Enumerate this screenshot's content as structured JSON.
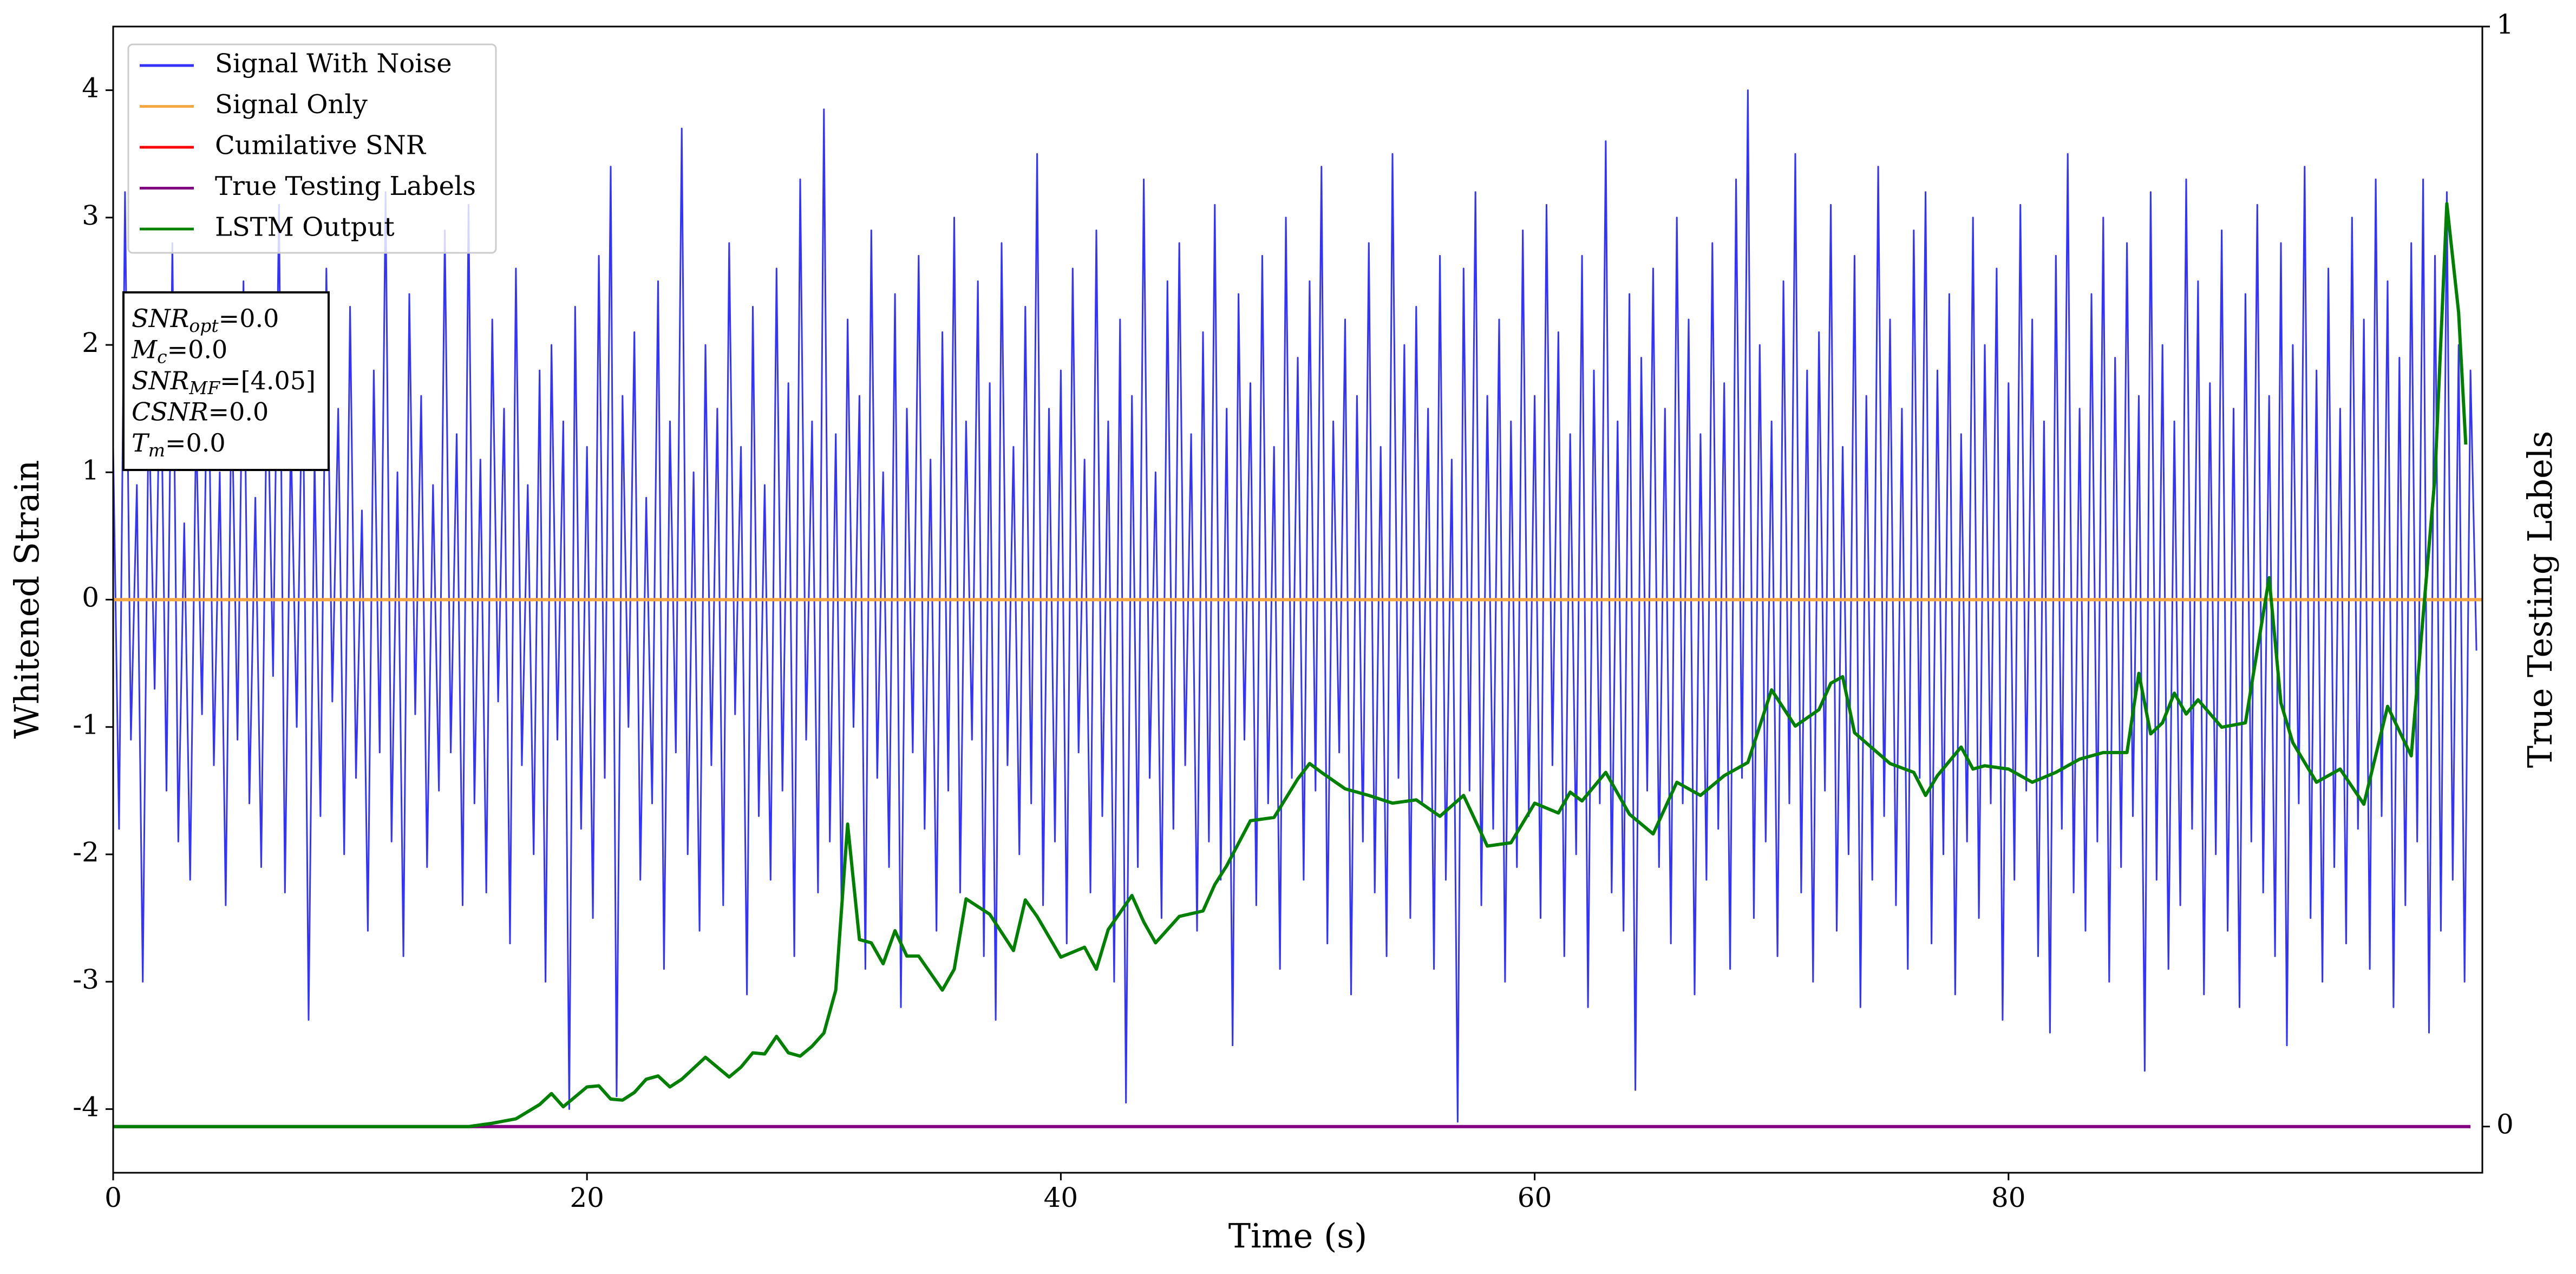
{
  "chart_data": {
    "type": "line",
    "xlabel": "Time (s)",
    "ylabel": "Whitened Strain",
    "y2label": "True Testing Labels",
    "xlim": [
      0,
      100
    ],
    "ylim": [
      -4.5,
      4.5
    ],
    "y2lim": [
      -0.042,
      1
    ],
    "xticks": [
      0,
      20,
      40,
      60,
      80
    ],
    "yticks": [
      -4,
      -3,
      -2,
      -1,
      0,
      1,
      2,
      3,
      4
    ],
    "y2ticks": [
      0,
      1
    ],
    "legend": "upper left",
    "annotations": [
      {
        "text": "SNR",
        "sub": "opt",
        "value": "=0.0"
      },
      {
        "text": "M",
        "sub": "c",
        "value": "=0.0"
      },
      {
        "text": "SNR",
        "sub": "MF",
        "value": "=[4.05]"
      },
      {
        "text": "CSNR",
        "value": "=0.0"
      },
      {
        "text": "T",
        "sub": "m",
        "value": "=0.0"
      }
    ],
    "series": [
      {
        "name": "Signal With Noise",
        "color": "#3333ff",
        "x": [
          0,
          0.25,
          0.5,
          0.75,
          1,
          1.25,
          1.5,
          1.75,
          2,
          2.25,
          2.5,
          2.75,
          3,
          3.25,
          3.5,
          3.75,
          4,
          4.25,
          4.5,
          4.75,
          5,
          5.25,
          5.5,
          5.75,
          6,
          6.25,
          6.5,
          6.75,
          7,
          7.25,
          7.5,
          7.75,
          8,
          8.25,
          8.5,
          8.75,
          9,
          9.25,
          9.5,
          9.75,
          10,
          10.25,
          10.5,
          10.75,
          11,
          11.25,
          11.5,
          11.75,
          12,
          12.25,
          12.5,
          12.75,
          13,
          13.25,
          13.5,
          13.75,
          14,
          14.25,
          14.5,
          14.75,
          15,
          15.25,
          15.5,
          15.75,
          16,
          16.25,
          16.5,
          16.75,
          17,
          17.25,
          17.5,
          17.75,
          18,
          18.25,
          18.5,
          18.75,
          19,
          19.25,
          19.5,
          19.75,
          20,
          20.25,
          20.5,
          20.75,
          21,
          21.25,
          21.5,
          21.75,
          22,
          22.25,
          22.5,
          22.75,
          23,
          23.25,
          23.5,
          23.75,
          24,
          24.25,
          24.5,
          24.75,
          25,
          25.25,
          25.5,
          25.75,
          26,
          26.25,
          26.5,
          26.75,
          27,
          27.25,
          27.5,
          27.75,
          28,
          28.25,
          28.5,
          28.75,
          29,
          29.25,
          29.5,
          29.75,
          30,
          30.25,
          30.5,
          30.75,
          31,
          31.25,
          31.5,
          31.75,
          32,
          32.25,
          32.5,
          32.75,
          33,
          33.25,
          33.5,
          33.75,
          34,
          34.25,
          34.5,
          34.75,
          35,
          35.25,
          35.5,
          35.75,
          36,
          36.25,
          36.5,
          36.75,
          37,
          37.25,
          37.5,
          37.75,
          38,
          38.25,
          38.5,
          38.75,
          39,
          39.25,
          39.5,
          39.75,
          40,
          40.25,
          40.5,
          40.75,
          41,
          41.25,
          41.5,
          41.75,
          42,
          42.25,
          42.5,
          42.75,
          43,
          43.25,
          43.5,
          43.75,
          44,
          44.25,
          44.5,
          44.75,
          45,
          45.25,
          45.5,
          45.75,
          46,
          46.25,
          46.5,
          46.75,
          47,
          47.25,
          47.5,
          47.75,
          48,
          48.25,
          48.5,
          48.75,
          49,
          49.25,
          49.5,
          49.75,
          50,
          50.25,
          50.5,
          50.75,
          51,
          51.25,
          51.5,
          51.75,
          52,
          52.25,
          52.5,
          52.75,
          53,
          53.25,
          53.5,
          53.75,
          54,
          54.25,
          54.5,
          54.75,
          55,
          55.25,
          55.5,
          55.75,
          56,
          56.25,
          56.5,
          56.75,
          57,
          57.25,
          57.5,
          57.75,
          58,
          58.25,
          58.5,
          58.75,
          59,
          59.25,
          59.5,
          59.75,
          60,
          60.25,
          60.5,
          60.75,
          61,
          61.25,
          61.5,
          61.75,
          62,
          62.25,
          62.5,
          62.75,
          63,
          63.25,
          63.5,
          63.75,
          64,
          64.25,
          64.5,
          64.75,
          65,
          65.25,
          65.5,
          65.75,
          66,
          66.25,
          66.5,
          66.75,
          67,
          67.25,
          67.5,
          67.75,
          68,
          68.25,
          68.5,
          68.75,
          69,
          69.25,
          69.5,
          69.75,
          70,
          70.25,
          70.5,
          70.75,
          71,
          71.25,
          71.5,
          71.75,
          72,
          72.25,
          72.5,
          72.75,
          73,
          73.25,
          73.5,
          73.75,
          74,
          74.25,
          74.5,
          74.75,
          75,
          75.25,
          75.5,
          75.75,
          76,
          76.25,
          76.5,
          76.75,
          77,
          77.25,
          77.5,
          77.75,
          78,
          78.25,
          78.5,
          78.75,
          79,
          79.25,
          79.5,
          79.75,
          80,
          80.25,
          80.5,
          80.75,
          81,
          81.25,
          81.5,
          81.75,
          82,
          82.25,
          82.5,
          82.75,
          83,
          83.25,
          83.5,
          83.75,
          84,
          84.25,
          84.5,
          84.75,
          85,
          85.25,
          85.5,
          85.75,
          86,
          86.25,
          86.5,
          86.75,
          87,
          87.25,
          87.5,
          87.75,
          88,
          88.25,
          88.5,
          88.75,
          89,
          89.25,
          89.5,
          89.75,
          90,
          90.25,
          90.5,
          90.75,
          91,
          91.25,
          91.5,
          91.75,
          92,
          92.25,
          92.5,
          92.75,
          93,
          93.25,
          93.5,
          93.75,
          94,
          94.25,
          94.5,
          94.75,
          95,
          95.25,
          95.5,
          95.75,
          96,
          96.25,
          96.5,
          96.75,
          97,
          97.25,
          97.5,
          97.75,
          98,
          98.25,
          98.5,
          98.75,
          99,
          99.25,
          99.5,
          99.75
        ],
        "values": [
          1.2,
          -1.8,
          3.2,
          -1.1,
          0.9,
          -3.0,
          1.6,
          -0.7,
          2.1,
          -1.5,
          2.8,
          -1.9,
          0.6,
          -2.2,
          1.4,
          -0.9,
          2.2,
          -1.3,
          1.0,
          -2.4,
          1.7,
          -1.1,
          2.5,
          -1.6,
          0.8,
          -2.1,
          1.9,
          -0.6,
          3.1,
          -2.3,
          1.3,
          -1.0,
          2.0,
          -3.3,
          1.1,
          -1.7,
          2.6,
          -0.8,
          1.5,
          -2.0,
          2.3,
          -1.4,
          0.7,
          -2.6,
          1.8,
          -1.2,
          3.2,
          -1.9,
          1.0,
          -2.8,
          2.4,
          -0.9,
          1.6,
          -2.1,
          0.9,
          -1.5,
          2.9,
          -1.2,
          1.3,
          -2.4,
          3.1,
          -1.6,
          1.1,
          -2.3,
          2.2,
          -0.8,
          1.5,
          -2.7,
          2.6,
          -1.3,
          0.9,
          -2.0,
          1.8,
          -3.0,
          2.0,
          -1.1,
          1.4,
          -4.0,
          2.3,
          -1.8,
          1.2,
          -2.5,
          2.7,
          -1.4,
          3.4,
          -3.9,
          1.6,
          -1.0,
          2.1,
          -2.2,
          0.8,
          -1.6,
          2.5,
          -2.9,
          1.4,
          -1.2,
          3.7,
          -2.0,
          1.0,
          -2.6,
          2.0,
          -1.3,
          1.5,
          -2.4,
          2.8,
          -0.9,
          1.2,
          -3.1,
          2.3,
          -1.7,
          0.9,
          -2.2,
          2.6,
          -1.5,
          1.7,
          -2.8,
          3.3,
          -1.1,
          1.4,
          -2.3,
          3.85,
          -1.9,
          1.3,
          -2.5,
          2.2,
          -1.0,
          1.6,
          -2.9,
          2.9,
          -1.4,
          1.0,
          -2.1,
          2.4,
          -3.2,
          1.5,
          -1.2,
          2.7,
          -1.8,
          1.1,
          -2.6,
          2.1,
          -1.5,
          3.0,
          -2.3,
          1.4,
          -1.1,
          2.5,
          -2.8,
          1.7,
          -3.3,
          2.8,
          -1.3,
          1.2,
          -2.0,
          2.3,
          -1.6,
          3.5,
          -2.4,
          1.5,
          -1.9,
          1.8,
          -2.7,
          2.6,
          -1.2,
          1.1,
          -2.3,
          2.9,
          -1.7,
          1.4,
          -3.0,
          2.2,
          -3.95,
          1.6,
          -2.1,
          3.3,
          -1.4,
          1.0,
          -2.5,
          2.5,
          -1.8,
          2.8,
          -1.3,
          1.3,
          -2.6,
          2.1,
          -1.9,
          3.1,
          -2.2,
          1.5,
          -3.5,
          2.4,
          -1.1,
          1.7,
          -2.4,
          2.7,
          -1.6,
          1.2,
          -2.9,
          3.0,
          -1.4,
          1.9,
          -2.2,
          2.5,
          -1.5,
          3.4,
          -2.7,
          1.4,
          -1.2,
          2.2,
          -3.1,
          1.6,
          -1.9,
          2.8,
          -2.3,
          1.2,
          -2.8,
          3.5,
          -1.4,
          2.0,
          -2.5,
          2.3,
          -1.6,
          1.5,
          -2.9,
          2.7,
          -2.2,
          1.1,
          -4.1,
          2.6,
          -1.5,
          3.2,
          -2.4,
          1.6,
          -1.8,
          2.2,
          -3.0,
          1.4,
          -2.1,
          2.9,
          -1.7,
          1.6,
          -2.5,
          3.1,
          -1.3,
          2.1,
          -2.8,
          1.3,
          -2.0,
          2.7,
          -3.2,
          1.8,
          -1.6,
          3.6,
          -2.3,
          1.4,
          -2.6,
          2.4,
          -3.85,
          1.9,
          -1.5,
          2.6,
          -2.1,
          1.5,
          -2.7,
          3.0,
          -1.6,
          2.2,
          -3.1,
          1.3,
          -2.2,
          2.8,
          -1.8,
          1.7,
          -2.9,
          3.3,
          -1.4,
          4.0,
          -2.5,
          2.0,
          -1.9,
          1.4,
          -2.8,
          2.5,
          -1.6,
          3.5,
          -2.3,
          1.8,
          -3.0,
          2.1,
          -1.5,
          3.1,
          -2.6,
          1.2,
          -2.0,
          2.7,
          -3.2,
          1.6,
          -2.2,
          3.4,
          -1.7,
          2.2,
          -2.4,
          1.5,
          -2.9,
          2.9,
          -1.4,
          3.2,
          -2.7,
          1.8,
          -2.0,
          2.4,
          -3.1,
          1.3,
          -1.9,
          3.0,
          -2.5,
          2.0,
          -1.6,
          2.6,
          -3.3,
          1.7,
          -2.2,
          3.1,
          -1.5,
          2.2,
          -2.8,
          1.4,
          -3.4,
          2.7,
          -1.8,
          3.5,
          -2.3,
          1.5,
          -2.6,
          2.4,
          -1.9,
          3.0,
          -3.0,
          1.9,
          -2.1,
          2.8,
          -1.7,
          1.6,
          -3.7,
          3.2,
          -2.2,
          2.0,
          -2.9,
          1.4,
          -2.4,
          3.3,
          -1.8,
          2.5,
          -3.1,
          1.7,
          -2.0,
          2.9,
          -2.6,
          1.5,
          -3.2,
          2.4,
          -1.9,
          3.1,
          -2.3,
          1.6,
          -2.8,
          2.8,
          -3.5,
          2.0,
          -1.6,
          3.4,
          -2.5,
          1.8,
          -3.0,
          2.6,
          -2.1,
          1.5,
          -2.7,
          3.0,
          -1.8,
          2.2,
          -2.9,
          3.3,
          -1.7,
          2.5,
          -3.2,
          1.9,
          -2.4,
          2.8,
          -1.9,
          3.3,
          -3.4,
          2.7,
          -2.6,
          3.2,
          -2.2,
          2.0,
          -3.0,
          1.8,
          -0.4
        ]
      },
      {
        "name": "Signal Only",
        "color": "#f5a742",
        "x": [
          0,
          100
        ],
        "values": [
          0,
          0
        ]
      },
      {
        "name": "Cumilative SNR",
        "color": "#ff0000",
        "x": [
          0,
          100
        ],
        "values": [
          0,
          0
        ]
      },
      {
        "name": "True Testing Labels",
        "color": "#800080",
        "axis": "y2",
        "x": [
          0,
          99.5
        ],
        "values": [
          0,
          0
        ]
      },
      {
        "name": "LSTM Output",
        "color": "#008000",
        "axis": "y2",
        "x": [
          0,
          15,
          16,
          17,
          18,
          18.5,
          19,
          20,
          20.5,
          21,
          21.5,
          22,
          22.5,
          23,
          23.5,
          24,
          25,
          26,
          26.5,
          27,
          27.5,
          28,
          28.5,
          29,
          29.5,
          30,
          30.5,
          31,
          31.5,
          32,
          32.5,
          33,
          33.5,
          34,
          35,
          35.5,
          36,
          37,
          38,
          38.5,
          39,
          40,
          41,
          41.5,
          42,
          43,
          43.5,
          44,
          45,
          46,
          46.5,
          47,
          48,
          49,
          50,
          50.5,
          51,
          52,
          53,
          54,
          55,
          56,
          57,
          58,
          59,
          60,
          61,
          61.5,
          62,
          63,
          64,
          65,
          66,
          67,
          68,
          69,
          70,
          71,
          72,
          72.5,
          73,
          73.5,
          75,
          76,
          76.5,
          77,
          78,
          78.5,
          79,
          80,
          81,
          82,
          83,
          84,
          85,
          85.5,
          86,
          86.5,
          87,
          87.5,
          88,
          89,
          90,
          91,
          91.5,
          92,
          93,
          94,
          95,
          96,
          97,
          98,
          98.5,
          99,
          99.3
        ],
        "values": [
          0,
          0,
          0.003,
          0.007,
          0.02,
          0.03,
          0.018,
          0.036,
          0.037,
          0.025,
          0.024,
          0.031,
          0.043,
          0.046,
          0.036,
          0.043,
          0.063,
          0.045,
          0.054,
          0.067,
          0.066,
          0.082,
          0.067,
          0.064,
          0.073,
          0.085,
          0.124,
          0.275,
          0.17,
          0.167,
          0.148,
          0.178,
          0.155,
          0.155,
          0.124,
          0.143,
          0.207,
          0.193,
          0.16,
          0.206,
          0.191,
          0.154,
          0.163,
          0.143,
          0.179,
          0.21,
          0.186,
          0.167,
          0.191,
          0.196,
          0.22,
          0.237,
          0.278,
          0.281,
          0.316,
          0.33,
          0.322,
          0.307,
          0.301,
          0.294,
          0.297,
          0.282,
          0.301,
          0.255,
          0.258,
          0.294,
          0.285,
          0.304,
          0.296,
          0.322,
          0.284,
          0.266,
          0.313,
          0.301,
          0.319,
          0.331,
          0.397,
          0.364,
          0.379,
          0.403,
          0.409,
          0.358,
          0.33,
          0.322,
          0.301,
          0.319,
          0.345,
          0.325,
          0.328,
          0.325,
          0.313,
          0.322,
          0.334,
          0.34,
          0.34,
          0.412,
          0.357,
          0.367,
          0.394,
          0.375,
          0.388,
          0.363,
          0.367,
          0.499,
          0.385,
          0.349,
          0.313,
          0.325,
          0.293,
          0.382,
          0.337,
          0.591,
          0.839,
          0.74,
          0.62
        ]
      }
    ]
  }
}
